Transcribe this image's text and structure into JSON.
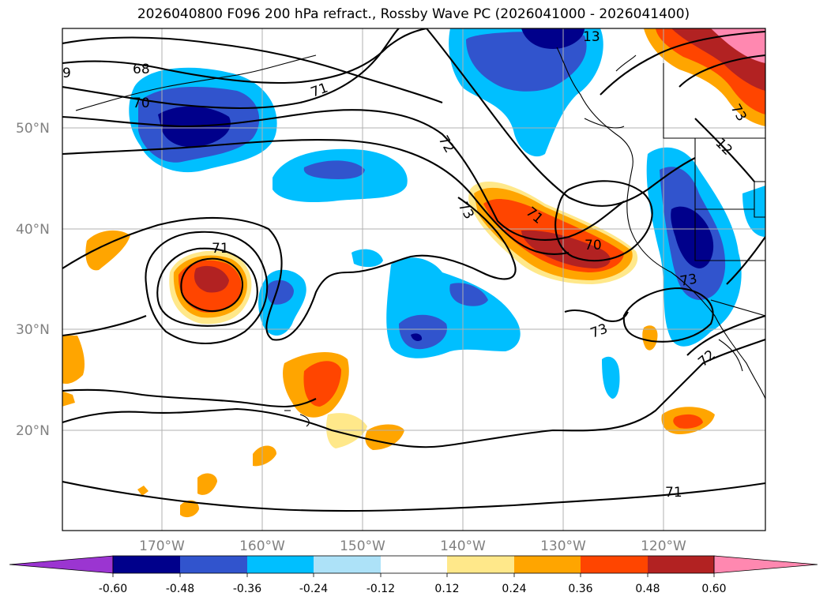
{
  "title": "2026040800 F096 200 hPa refract., Rossby Wave PC (2026041000 - 2026041400)",
  "lat_labels": [
    "50°N",
    "40°N",
    "30°N",
    "20°N"
  ],
  "lon_labels": [
    "170°W",
    "160°W",
    "150°W",
    "140°W",
    "130°W",
    "120°W"
  ],
  "contour_labels": [
    "68",
    "70",
    "71",
    "72",
    "73",
    "71",
    "70",
    "71",
    "73",
    "72",
    "71",
    "73",
    "9",
    "73",
    "12",
    "13"
  ],
  "colorbar": {
    "ticks": [
      "-0.60",
      "-0.48",
      "-0.36",
      "-0.24",
      "-0.12",
      "0.12",
      "0.24",
      "0.36",
      "0.48",
      "0.60"
    ],
    "colors": [
      "#9b35d1",
      "#00008b",
      "#3154cd",
      "#00bfff",
      "#ade2f8",
      "#ffffff",
      "#ffe88a",
      "#ffa500",
      "#ff4500",
      "#b22222",
      "#ff88b0"
    ]
  },
  "colors": {
    "neg_dark": "#00008b",
    "neg_mid": "#3154cd",
    "neg_light": "#00bfff",
    "neg_pale": "#ade2f8",
    "pos_pale": "#ffe88a",
    "pos_light": "#ffa500",
    "pos_mid": "#ff4500",
    "pos_dark": "#b22222",
    "pos_max": "#ff88b0"
  }
}
